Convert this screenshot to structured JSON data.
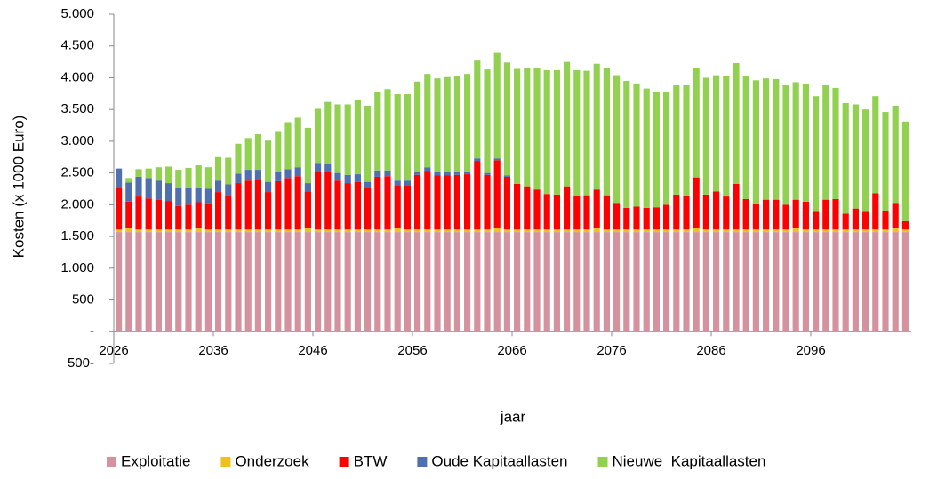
{
  "chart_data": {
    "type": "stacked_bar",
    "x_label": "jaar",
    "y_label": "Kosten (x 1000 Euro)",
    "x": [
      2026,
      2027,
      2028,
      2029,
      2030,
      2031,
      2032,
      2033,
      2034,
      2035,
      2036,
      2037,
      2038,
      2039,
      2040,
      2041,
      2042,
      2043,
      2044,
      2045,
      2046,
      2047,
      2048,
      2049,
      2050,
      2051,
      2052,
      2053,
      2054,
      2055,
      2056,
      2057,
      2058,
      2059,
      2060,
      2061,
      2062,
      2063,
      2064,
      2065,
      2066,
      2067,
      2068,
      2069,
      2070,
      2071,
      2072,
      2073,
      2074,
      2075,
      2076,
      2077,
      2078,
      2079,
      2080,
      2081,
      2082,
      2083,
      2084,
      2085,
      2086,
      2087,
      2088,
      2089,
      2090,
      2091,
      2092,
      2093,
      2094,
      2095,
      2096,
      2097,
      2098,
      2099,
      2100,
      2101,
      2102,
      2103,
      2104,
      2105
    ],
    "xlim": [
      2026,
      2106
    ],
    "xticks": [
      2026,
      2036,
      2046,
      2056,
      2066,
      2076,
      2086,
      2096
    ],
    "ylim": [
      -500,
      5000
    ],
    "yticks": [
      {
        "value": -500,
        "label": "500-"
      },
      {
        "value": 0,
        "label": "-"
      },
      500,
      {
        "value": 1000,
        "label": "1.000"
      },
      {
        "value": 1500,
        "label": "1.500"
      },
      {
        "value": 2000,
        "label": "2.000"
      },
      {
        "value": 2500,
        "label": "2.500"
      },
      {
        "value": 3000,
        "label": "3.000"
      },
      {
        "value": 3500,
        "label": "3.500"
      },
      {
        "value": 4000,
        "label": "4.000"
      },
      {
        "value": 4500,
        "label": "4.500"
      },
      {
        "value": 5000,
        "label": "5.000"
      }
    ],
    "legend": "bottom",
    "series": [
      {
        "name": "Exploitatie",
        "color": "#d4929f",
        "values": [
          1570,
          1570,
          1570,
          1570,
          1570,
          1570,
          1570,
          1570,
          1570,
          1570,
          1570,
          1570,
          1570,
          1570,
          1570,
          1570,
          1570,
          1570,
          1570,
          1570,
          1570,
          1570,
          1570,
          1570,
          1570,
          1570,
          1570,
          1570,
          1570,
          1570,
          1570,
          1570,
          1570,
          1570,
          1570,
          1570,
          1570,
          1570,
          1570,
          1570,
          1570,
          1570,
          1570,
          1570,
          1570,
          1570,
          1570,
          1570,
          1570,
          1570,
          1570,
          1570,
          1570,
          1570,
          1570,
          1570,
          1570,
          1570,
          1570,
          1570,
          1570,
          1570,
          1570,
          1570,
          1570,
          1570,
          1570,
          1570,
          1570,
          1570,
          1570,
          1570,
          1570,
          1570,
          1570,
          1570,
          1570,
          1570,
          1570,
          1570
        ]
      },
      {
        "name": "Onderzoek",
        "color": "#f0c020",
        "values": [
          40,
          70,
          40,
          40,
          40,
          40,
          40,
          40,
          70,
          40,
          40,
          40,
          40,
          40,
          40,
          40,
          40,
          40,
          40,
          70,
          40,
          40,
          40,
          40,
          40,
          40,
          40,
          40,
          70,
          40,
          40,
          40,
          40,
          40,
          40,
          40,
          40,
          40,
          70,
          40,
          40,
          40,
          40,
          40,
          40,
          40,
          40,
          40,
          70,
          40,
          40,
          40,
          40,
          40,
          40,
          40,
          40,
          40,
          70,
          40,
          40,
          40,
          40,
          40,
          40,
          40,
          40,
          40,
          70,
          40,
          40,
          40,
          40,
          40,
          40,
          40,
          40,
          40,
          70,
          40
        ]
      },
      {
        "name": "BTW",
        "color": "#ff0000",
        "values": [
          670,
          410,
          520,
          490,
          470,
          450,
          370,
          390,
          400,
          410,
          590,
          540,
          730,
          770,
          780,
          590,
          760,
          810,
          840,
          570,
          900,
          910,
          770,
          730,
          750,
          650,
          830,
          840,
          670,
          700,
          860,
          920,
          850,
          850,
          860,
          870,
          1080,
          860,
          1060,
          830,
          720,
          680,
          630,
          560,
          550,
          680,
          530,
          540,
          600,
          540,
          420,
          340,
          360,
          340,
          350,
          390,
          550,
          530,
          790,
          550,
          600,
          520,
          720,
          480,
          410,
          470,
          470,
          390,
          440,
          440,
          290,
          470,
          480,
          250,
          330,
          290,
          570,
          300,
          390,
          130
        ]
      },
      {
        "name": "Oude Kapitaallasten",
        "color": "#4f6fae",
        "values": [
          290,
          300,
          310,
          320,
          300,
          280,
          290,
          270,
          230,
          230,
          180,
          170,
          150,
          170,
          160,
          160,
          140,
          140,
          140,
          130,
          150,
          120,
          120,
          130,
          120,
          100,
          100,
          90,
          70,
          70,
          50,
          60,
          50,
          50,
          40,
          40,
          40,
          30,
          30,
          20,
          0,
          0,
          0,
          0,
          0,
          0,
          0,
          0,
          0,
          0,
          0,
          0,
          0,
          0,
          0,
          0,
          0,
          0,
          0,
          0,
          0,
          0,
          0,
          0,
          0,
          0,
          0,
          0,
          0,
          0,
          0,
          0,
          0,
          0,
          0,
          0,
          0,
          0,
          0,
          0
        ]
      },
      {
        "name": "Nieuwe  Kapitaallasten",
        "color": "#92d050",
        "values": [
          0,
          70,
          120,
          150,
          210,
          260,
          280,
          310,
          350,
          340,
          370,
          420,
          470,
          500,
          560,
          650,
          650,
          740,
          780,
          870,
          850,
          980,
          1080,
          1110,
          1170,
          1200,
          1240,
          1280,
          1360,
          1360,
          1420,
          1470,
          1480,
          1500,
          1510,
          1540,
          1540,
          1630,
          1660,
          1780,
          1810,
          1860,
          1910,
          1950,
          1960,
          1960,
          1980,
          1960,
          1980,
          2010,
          2010,
          2000,
          1940,
          1880,
          1810,
          1780,
          1720,
          1740,
          1730,
          1840,
          1830,
          1900,
          1900,
          1930,
          1940,
          1910,
          1900,
          1880,
          1850,
          1850,
          1810,
          1800,
          1750,
          1740,
          1640,
          1600,
          1530,
          1550,
          1530,
          1570
        ]
      }
    ]
  }
}
